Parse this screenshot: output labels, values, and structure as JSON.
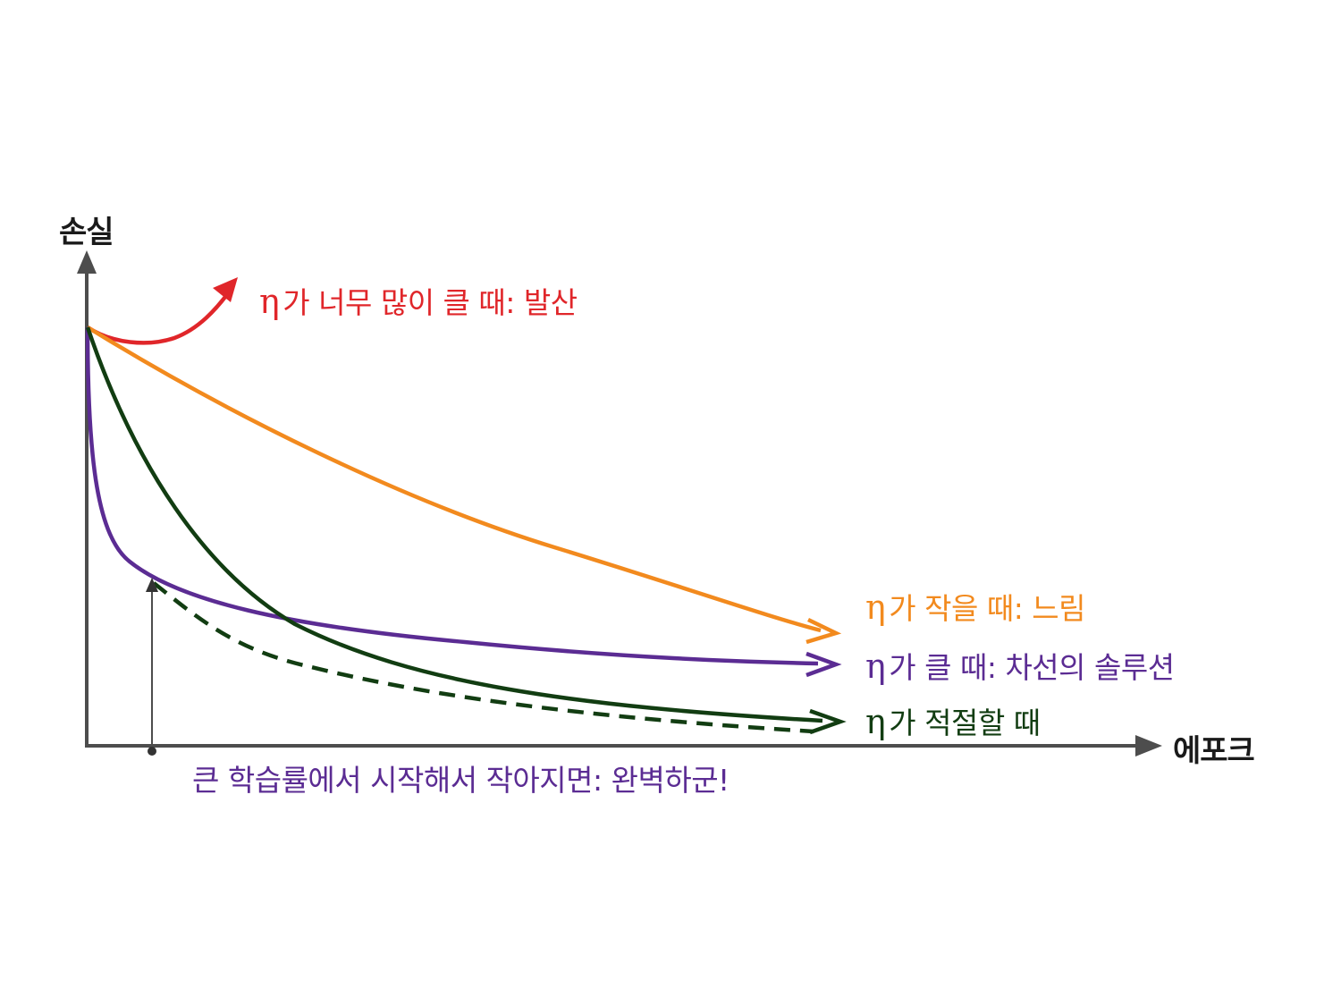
{
  "diagram": {
    "y_axis_label": "손실",
    "x_axis_label": "에포크",
    "curves": [
      {
        "key": "too_large",
        "symbol": "η",
        "label": "가 너무 많이 클 때: 발산",
        "color": "#e0262a"
      },
      {
        "key": "small",
        "symbol": "η",
        "label": "가 작을 때: 느림",
        "color": "#f28a1e"
      },
      {
        "key": "large",
        "symbol": "η",
        "label": "가 클 때: 차선의 솔루션",
        "color": "#5b2c93"
      },
      {
        "key": "good",
        "symbol": "η",
        "label": "가 적절할 때",
        "color": "#123d12"
      }
    ],
    "schedule_label": "큰 학습률에서 시작해서 작아지면: 완벽하군!",
    "axis_color": "#4d4d4d"
  }
}
